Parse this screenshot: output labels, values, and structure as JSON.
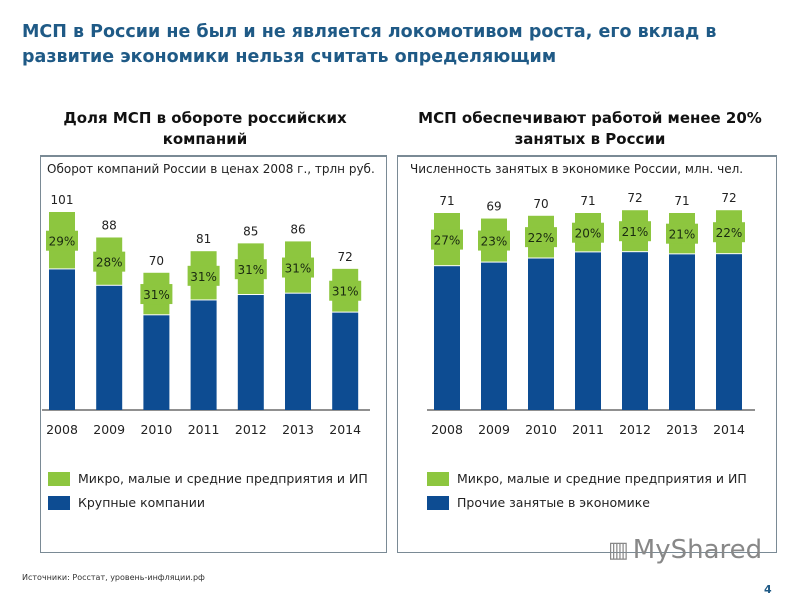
{
  "title": "МСП в России не был и не является локомотивом роста, его вклад в развитие экономики нельзя считать определяющим",
  "colors": {
    "sme": "#8dc63f",
    "other": "#0d4c92",
    "title": "#1f5a86"
  },
  "chart_data": [
    {
      "type": "bar",
      "stacked": true,
      "title": "Доля МСП в обороте российских компаний",
      "subtitle": "Оборот компаний России в ценах 2008 г., трлн руб.",
      "categories": [
        "2008",
        "2009",
        "2010",
        "2011",
        "2012",
        "2013",
        "2014"
      ],
      "totals": [
        101,
        88,
        70,
        81,
        85,
        86,
        72
      ],
      "sme_share_pct": [
        29,
        28,
        31,
        31,
        31,
        31,
        31
      ],
      "legend": [
        "Микро, малые и средние предприятия и ИП",
        "Крупные компании"
      ],
      "grid": false
    },
    {
      "type": "bar",
      "stacked": true,
      "title": "МСП  обеспечивают работой менее 20% занятых в России",
      "subtitle": "Численность занятых в экономике России, млн. чел.",
      "categories": [
        "2008",
        "2009",
        "2010",
        "2011",
        "2012",
        "2013",
        "2014"
      ],
      "totals": [
        71,
        69,
        70,
        71,
        72,
        71,
        72
      ],
      "sme_share_pct": [
        27,
        23,
        22,
        20,
        21,
        21,
        22
      ],
      "legend": [
        "Микро, малые и средние предприятия и ИП",
        "Прочие занятые в экономике"
      ],
      "grid": false
    }
  ],
  "footer": {
    "source": "Источники: Росстат, уровень-инфляции.рф",
    "page": "4",
    "watermark": "MyShared"
  }
}
